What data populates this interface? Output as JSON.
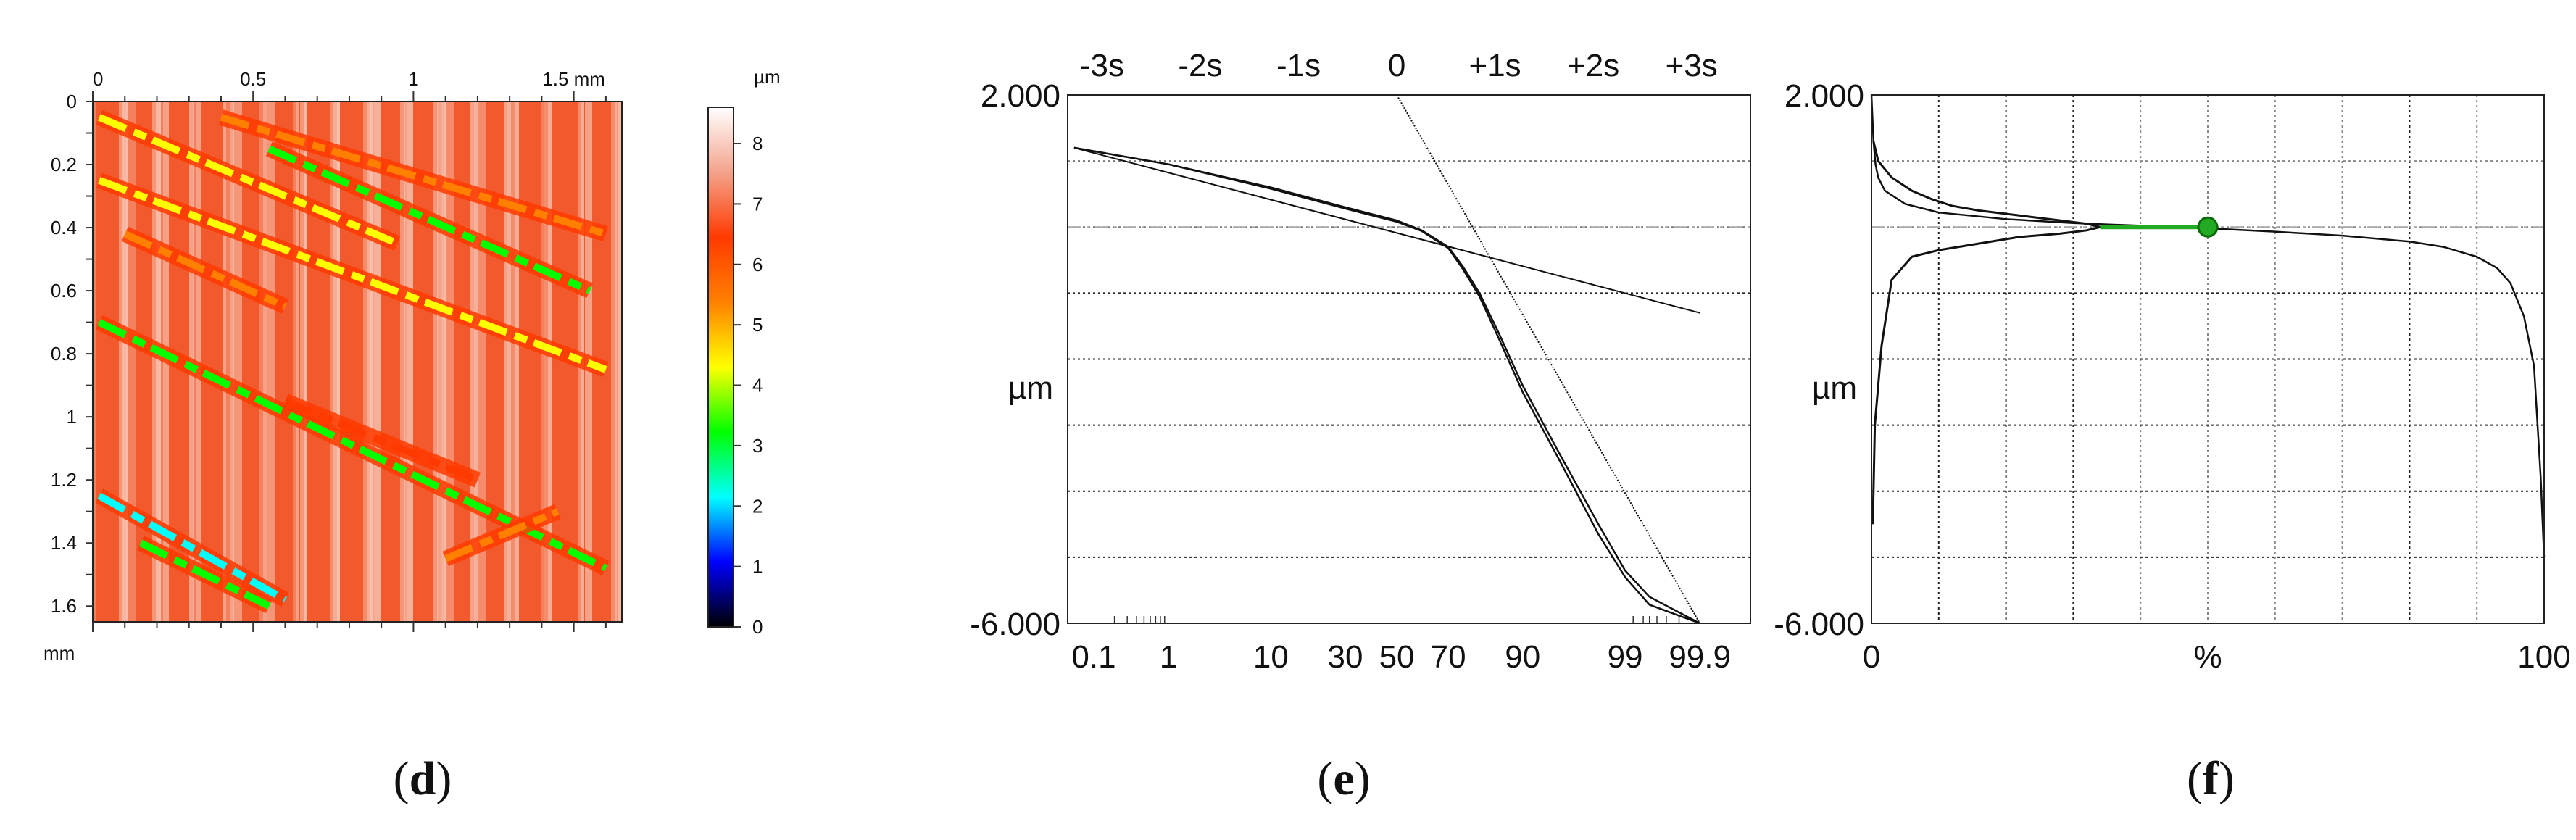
{
  "chart_data": [
    {
      "type": "heatmap",
      "panel": "d",
      "caption_open": "(",
      "caption_letter": "d",
      "caption_close": ")",
      "x_ticks": [
        "0",
        "0.5",
        "1",
        "1.5 mm"
      ],
      "x_tick_values": [
        0,
        0.5,
        1,
        1.5
      ],
      "xlim": [
        0,
        1.65
      ],
      "y_ticks": [
        "0",
        "0.2",
        "0.4",
        "0.6",
        "0.8",
        "1",
        "1.2",
        "1.4",
        "1.6"
      ],
      "y_tick_values": [
        0,
        0.2,
        0.4,
        0.6,
        0.8,
        1,
        1.2,
        1.4,
        1.6
      ],
      "ylim": [
        0,
        1.65
      ],
      "y_unit_label": "mm",
      "colorbar_unit": "µm",
      "colorbar_ticks": [
        "0",
        "1",
        "2",
        "3",
        "4",
        "5",
        "6",
        "7",
        "8"
      ],
      "colorbar_values": [
        0,
        1,
        2,
        3,
        4,
        5,
        6,
        7,
        8
      ],
      "colorbar_range": [
        0,
        8.6
      ],
      "colorbar_colors": [
        "#000000",
        "#0000ff",
        "#00ffff",
        "#00ff00",
        "#ffff00",
        "#ff8000",
        "#ff3a00",
        "#f4a38c",
        "#ffffff"
      ],
      "background_color": "#f25a2e",
      "grooves": [
        {
          "x1": 0.02,
          "y1": 0.05,
          "x2": 0.95,
          "y2": 0.45,
          "value": 4
        },
        {
          "x1": 0.02,
          "y1": 0.25,
          "x2": 1.6,
          "y2": 0.85,
          "value": 4
        },
        {
          "x1": 0.02,
          "y1": 0.7,
          "x2": 1.6,
          "y2": 1.48,
          "value": 3
        },
        {
          "x1": 0.02,
          "y1": 1.25,
          "x2": 0.6,
          "y2": 1.58,
          "value": 2
        },
        {
          "x1": 0.4,
          "y1": 0.05,
          "x2": 1.6,
          "y2": 0.42,
          "value": 5
        },
        {
          "x1": 0.55,
          "y1": 0.15,
          "x2": 1.55,
          "y2": 0.6,
          "value": 3
        },
        {
          "x1": 0.1,
          "y1": 0.42,
          "x2": 0.6,
          "y2": 0.65,
          "value": 5
        },
        {
          "x1": 0.6,
          "y1": 0.95,
          "x2": 1.2,
          "y2": 1.2,
          "value": 6
        },
        {
          "x1": 0.15,
          "y1": 1.4,
          "x2": 0.55,
          "y2": 1.6,
          "value": 3
        },
        {
          "x1": 1.1,
          "y1": 1.45,
          "x2": 1.45,
          "y2": 1.3,
          "value": 5
        }
      ]
    },
    {
      "type": "line",
      "panel": "e",
      "caption_open": "(",
      "caption_letter": "e",
      "caption_close": ")",
      "top_ticks": [
        "-3s",
        "-2s",
        "-1s",
        "0",
        "+1s",
        "+2s",
        "+3s"
      ],
      "top_tick_sigma": [
        -3,
        -2,
        -1,
        0,
        1,
        2,
        3
      ],
      "x_ticks": [
        "0.1",
        "1",
        "10",
        "30",
        "50",
        "70",
        "90",
        "99",
        "99.9"
      ],
      "x_tick_values": [
        0.1,
        1,
        10,
        30,
        50,
        70,
        90,
        99,
        99.9
      ],
      "xlim_sigma": [
        -3.35,
        3.6
      ],
      "y_ticks": [
        "2.000",
        "-6.000"
      ],
      "y_tick_values": [
        2,
        -6
      ],
      "ylabel": "µm",
      "ylim": [
        -6,
        2
      ],
      "dotted_gridlines_y": [
        1,
        0,
        -1,
        -2,
        -3,
        -4,
        -5
      ],
      "mean_line_y": 0.0,
      "series": [
        {
          "x": [
            0.05,
            1,
            10,
            30,
            50,
            60,
            70,
            75,
            80,
            85,
            90,
            95,
            98,
            99,
            99.5,
            99.9
          ],
          "y": [
            1.2,
            0.95,
            0.6,
            0.3,
            0.1,
            -0.05,
            -0.3,
            -0.6,
            -1.0,
            -1.6,
            -2.4,
            -3.4,
            -4.5,
            -5.2,
            -5.6,
            -6.0
          ]
        },
        {
          "x": [
            0.05,
            1,
            10,
            30,
            50,
            60,
            70,
            75,
            80,
            85,
            90,
            95,
            98,
            99,
            99.5,
            99.9
          ],
          "y": [
            1.2,
            0.95,
            0.58,
            0.28,
            0.08,
            -0.06,
            -0.32,
            -0.64,
            -1.05,
            -1.68,
            -2.5,
            -3.5,
            -4.65,
            -5.3,
            -5.72,
            -6.0
          ]
        },
        {
          "x": [
            0.05,
            99.9
          ],
          "y": [
            1.2,
            -1.3
          ]
        },
        {
          "x": [
            50,
            99.9
          ],
          "y": [
            2.0,
            -6.0
          ]
        }
      ]
    },
    {
      "type": "area",
      "panel": "f",
      "caption_open": "(",
      "caption_letter": "f",
      "caption_close": ")",
      "x_ticks": [
        "0",
        "%",
        "100"
      ],
      "x_tick_values": [
        0,
        50,
        100
      ],
      "xlim": [
        0,
        100
      ],
      "y_ticks": [
        "2.000",
        "-6.000"
      ],
      "y_tick_values": [
        2,
        -6
      ],
      "ylabel": "µm",
      "ylim": [
        -6,
        2
      ],
      "vertical_gridlines_x": [
        10,
        20,
        30,
        40,
        50,
        60,
        70,
        80,
        90
      ],
      "dotted_gridlines_y": [
        1,
        0,
        -1,
        -2,
        -3,
        -4,
        -5
      ],
      "mean_line_y": 0.0,
      "marker": {
        "x": 50,
        "y": 0.0,
        "start_x": 34
      },
      "marker_color": "#22aa22",
      "abbott_curve": {
        "x": [
          0,
          0.3,
          0.6,
          1,
          2,
          5,
          10,
          20,
          30,
          40,
          50,
          60,
          70,
          80,
          85,
          90,
          93,
          95,
          97,
          98.5,
          99.5,
          100
        ],
        "y": [
          2.0,
          1.3,
          0.95,
          0.75,
          0.55,
          0.35,
          0.22,
          0.12,
          0.06,
          0.02,
          -0.02,
          -0.07,
          -0.13,
          -0.22,
          -0.3,
          -0.45,
          -0.62,
          -0.85,
          -1.35,
          -2.1,
          -3.8,
          -5.0
        ]
      },
      "density_curve": {
        "x": [
          0.3,
          1,
          3,
          6,
          9,
          12,
          16,
          20,
          24,
          28,
          32,
          34,
          32,
          28,
          22,
          16,
          10,
          6,
          3,
          1.5,
          0.5,
          0.2
        ],
        "y": [
          1.3,
          1.0,
          0.75,
          0.55,
          0.42,
          0.32,
          0.25,
          0.2,
          0.15,
          0.1,
          0.05,
          0.0,
          -0.05,
          -0.1,
          -0.15,
          -0.25,
          -0.35,
          -0.45,
          -0.8,
          -1.8,
          -3.0,
          -4.5
        ]
      }
    }
  ]
}
